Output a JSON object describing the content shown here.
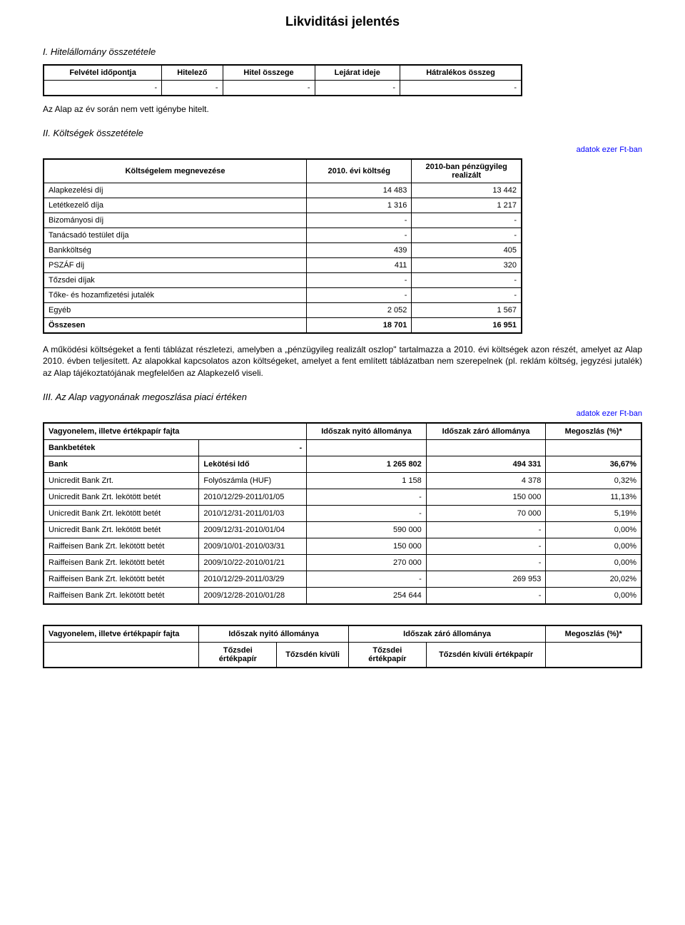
{
  "title": "Likviditási jelentés",
  "section1": {
    "heading": "I. Hitelállomány összetétele",
    "columns": [
      "Felvétel időpontja",
      "Hitelező",
      "Hitel összege",
      "Lejárat ideje",
      "Hátralékos összeg"
    ],
    "row": [
      "-",
      "-",
      "-",
      "-",
      "-"
    ],
    "note": "Az Alap az év során nem vett igénybe hitelt."
  },
  "section2": {
    "heading": "II. Költségek összetétele",
    "unit_note": "adatok ezer Ft-ban",
    "col_headers": [
      "Költségelem megnevezése",
      "2010. évi költség",
      "2010-ban pénzügyileg realizált"
    ],
    "rows": [
      {
        "label": "Alapkezelési díj",
        "c1": "14 483",
        "c2": "13 442"
      },
      {
        "label": "Letétkezelő díja",
        "c1": "1 316",
        "c2": "1 217"
      },
      {
        "label": "Bizományosi díj",
        "c1": "-",
        "c2": "-"
      },
      {
        "label": "Tanácsadó testület díja",
        "c1": "-",
        "c2": "-"
      },
      {
        "label": "Bankköltség",
        "c1": "439",
        "c2": "405"
      },
      {
        "label": "PSZÁF díj",
        "c1": "411",
        "c2": "320"
      },
      {
        "label": "Tőzsdei díjak",
        "c1": "-",
        "c2": "-"
      },
      {
        "label": "Tőke- és hozamfizetési jutalék",
        "c1": "-",
        "c2": "-"
      },
      {
        "label": "Egyéb",
        "c1": "2 052",
        "c2": "1 567"
      }
    ],
    "total": {
      "label": "Összesen",
      "c1": "18 701",
      "c2": "16 951"
    },
    "paragraph": "A működési költségeket a fenti táblázat részletezi, amelyben a „pénzügyileg realizált oszlop\" tartalmazza a 2010. évi költségek azon részét, amelyet az Alap 2010. évben teljesített. Az alapokkal kapcsolatos azon költségeket, amelyet a fent említett táblázatban nem szerepelnek (pl. reklám költség, jegyzési jutalék) az Alap tájékoztatójának megfelelően az Alapkezelő viseli."
  },
  "section3": {
    "heading": "III. Az Alap vagyonának megoszlása piaci értéken",
    "unit_note": "adatok ezer Ft-ban",
    "headers": [
      "Vagyonelem, illetve értékpapír fajta",
      "Időszak nyitó állománya",
      "Időszak záró állománya",
      "Megoszlás (%)*"
    ],
    "bankbetetek_label": "Bankbetétek",
    "bank_row": {
      "label": "Bank",
      "sub": "Lekötési Idő",
      "open": "1 265 802",
      "close": "494 331",
      "pct": "36,67%"
    },
    "rows": [
      {
        "name": "Unicredit Bank Zrt.",
        "sub": "Folyószámla (HUF)",
        "open": "1 158",
        "close": "4 378",
        "pct": "0,32%"
      },
      {
        "name": "Unicredit Bank Zrt. lekötött betét",
        "sub": "2010/12/29-2011/01/05",
        "open": "-",
        "close": "150 000",
        "pct": "11,13%"
      },
      {
        "name": "Unicredit Bank Zrt. lekötött betét",
        "sub": "2010/12/31-2011/01/03",
        "open": "-",
        "close": "70 000",
        "pct": "5,19%"
      },
      {
        "name": "Unicredit Bank Zrt. lekötött betét",
        "sub": "2009/12/31-2010/01/04",
        "open": "590 000",
        "close": "-",
        "pct": "0,00%"
      },
      {
        "name": "Raiffeisen Bank Zrt. lekötött betét",
        "sub": "2009/10/01-2010/03/31",
        "open": "150 000",
        "close": "-",
        "pct": "0,00%"
      },
      {
        "name": "Raiffeisen Bank Zrt. lekötött betét",
        "sub": "2009/10/22-2010/01/21",
        "open": "270 000",
        "close": "-",
        "pct": "0,00%"
      },
      {
        "name": "Raiffeisen Bank Zrt. lekötött betét",
        "sub": "2010/12/29-2011/03/29",
        "open": "-",
        "close": "269 953",
        "pct": "20,02%"
      },
      {
        "name": "Raiffeisen Bank Zrt. lekötött betét",
        "sub": "2009/12/28-2010/01/28",
        "open": "254 644",
        "close": "-",
        "pct": "0,00%"
      }
    ],
    "footer": {
      "headers": [
        "Vagyonelem, illetve értékpapír fajta",
        "Időszak nyitó állománya",
        "Időszak záró állománya",
        "Megoszlás (%)*"
      ],
      "sub": [
        "Tőzsdei értékpapír",
        "Tőzsdén kívüli",
        "Tőzsdei értékpapír",
        "Tőzsdén kívüli értékpapír"
      ]
    }
  },
  "colors": {
    "text": "#000000",
    "link_blue": "#0000ff",
    "background": "#ffffff",
    "border": "#000000"
  }
}
